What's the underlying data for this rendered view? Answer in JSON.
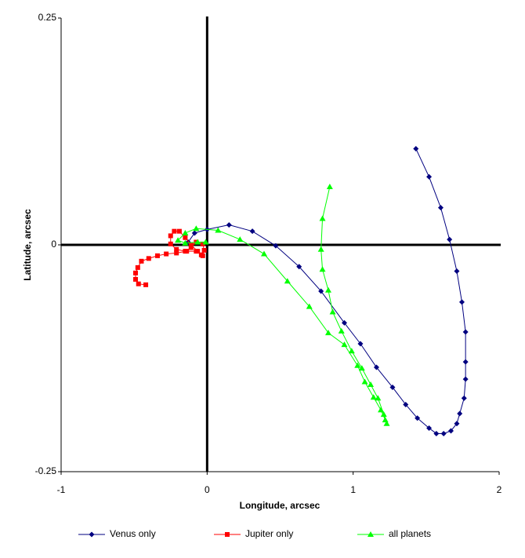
{
  "chart_data": {
    "type": "line",
    "x_label": "Longitude, arcsec",
    "y_label": "Latitude, arcsec",
    "xlim": [
      -1,
      2
    ],
    "xticks": [
      -1,
      0,
      1,
      2
    ],
    "ylim": [
      -0.25,
      0.25
    ],
    "yticks": [
      -0.25,
      0,
      0.25
    ],
    "legend": "bottom",
    "series": [
      {
        "name": "Venus only",
        "color": "#000080",
        "marker": "diamond",
        "x": [
          1.43,
          1.52,
          1.6,
          1.66,
          1.71,
          1.745,
          1.77,
          1.77,
          1.77,
          1.76,
          1.73,
          1.71,
          1.67,
          1.62,
          1.57,
          1.52,
          1.44,
          1.36,
          1.27,
          1.16,
          1.05,
          0.94,
          0.78,
          0.63,
          0.47,
          0.31,
          0.15,
          0.0,
          -0.086,
          -0.13
        ],
        "values": [
          0.106,
          0.075,
          0.041,
          0.006,
          -0.029,
          -0.063,
          -0.096,
          -0.129,
          -0.148,
          -0.169,
          -0.186,
          -0.197,
          -0.205,
          -0.208,
          -0.208,
          -0.202,
          -0.191,
          -0.176,
          -0.157,
          -0.135,
          -0.109,
          -0.086,
          -0.051,
          -0.024,
          -0.001,
          0.015,
          0.022,
          0.017,
          0.013,
          0.003
        ]
      },
      {
        "name": "Jupiter only",
        "color": "#ff0000",
        "marker": "square",
        "x": [
          -0.42,
          -0.47,
          -0.49,
          -0.49,
          -0.475,
          -0.45,
          -0.4,
          -0.34,
          -0.28,
          -0.21,
          -0.14,
          -0.075,
          -0.03,
          -0.02,
          -0.03,
          -0.075,
          -0.11,
          -0.15,
          -0.21,
          -0.25,
          -0.25,
          -0.225,
          -0.19,
          -0.15,
          -0.11,
          -0.065,
          -0.04
        ],
        "values": [
          -0.044,
          -0.043,
          -0.038,
          -0.031,
          -0.025,
          -0.018,
          -0.015,
          -0.012,
          -0.01,
          -0.009,
          -0.007,
          -0.007,
          -0.012,
          -0.006,
          0.001,
          0.003,
          -0.003,
          -0.007,
          -0.005,
          0.001,
          0.01,
          0.015,
          0.015,
          0.008,
          0.0,
          -0.007,
          -0.011
        ]
      },
      {
        "name": "all planets",
        "color": "#00ff00",
        "marker": "triangle",
        "x": [
          0.84,
          0.79,
          0.78,
          0.79,
          0.83,
          0.86,
          0.92,
          0.99,
          1.06,
          1.12,
          1.17,
          1.21,
          1.23,
          1.22,
          1.19,
          1.14,
          1.08,
          1.03,
          0.94,
          0.83,
          0.7,
          0.55,
          0.39,
          0.225,
          0.075,
          -0.075,
          -0.15,
          -0.2,
          -0.15,
          -0.065,
          -0.01
        ],
        "values": [
          0.064,
          0.029,
          -0.005,
          -0.027,
          -0.05,
          -0.074,
          -0.095,
          -0.117,
          -0.136,
          -0.154,
          -0.169,
          -0.187,
          -0.197,
          -0.193,
          -0.182,
          -0.168,
          -0.151,
          -0.133,
          -0.11,
          -0.097,
          -0.068,
          -0.04,
          -0.01,
          0.006,
          0.016,
          0.018,
          0.013,
          0.005,
          0.002,
          0.003,
          0.003
        ]
      }
    ]
  }
}
